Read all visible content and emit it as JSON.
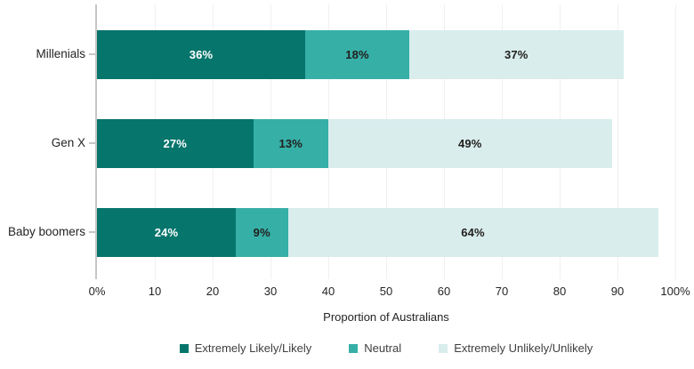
{
  "chart_data": {
    "type": "bar",
    "orientation": "horizontal",
    "stacked": true,
    "categories": [
      "Millenials",
      "Gen X",
      "Baby boomers"
    ],
    "series": [
      {
        "name": "Extremely Likely/Likely",
        "color": "#06756C",
        "label_color": "#ffffff",
        "values": [
          36,
          27,
          24
        ]
      },
      {
        "name": "Neutral",
        "color": "#36AFA7",
        "label_color": "#21201E",
        "values": [
          18,
          13,
          9
        ]
      },
      {
        "name": "Extremely Unlikely/Unlikely",
        "color": "#D9EDED",
        "label_color": "#21201E",
        "values": [
          37,
          49,
          64
        ]
      }
    ],
    "value_suffix": "%",
    "xlabel": "Proportion of Australians",
    "x_ticks": [
      "0%",
      "10",
      "20",
      "30",
      "40",
      "50",
      "60",
      "70",
      "80",
      "90",
      "100%"
    ],
    "xlim": [
      0,
      100
    ],
    "grid": "vertical-faint",
    "legend_position": "bottom"
  },
  "colors": {
    "axis_line": "#C8C6C4",
    "gridline": "#F2F0EF",
    "text": "#252423"
  }
}
